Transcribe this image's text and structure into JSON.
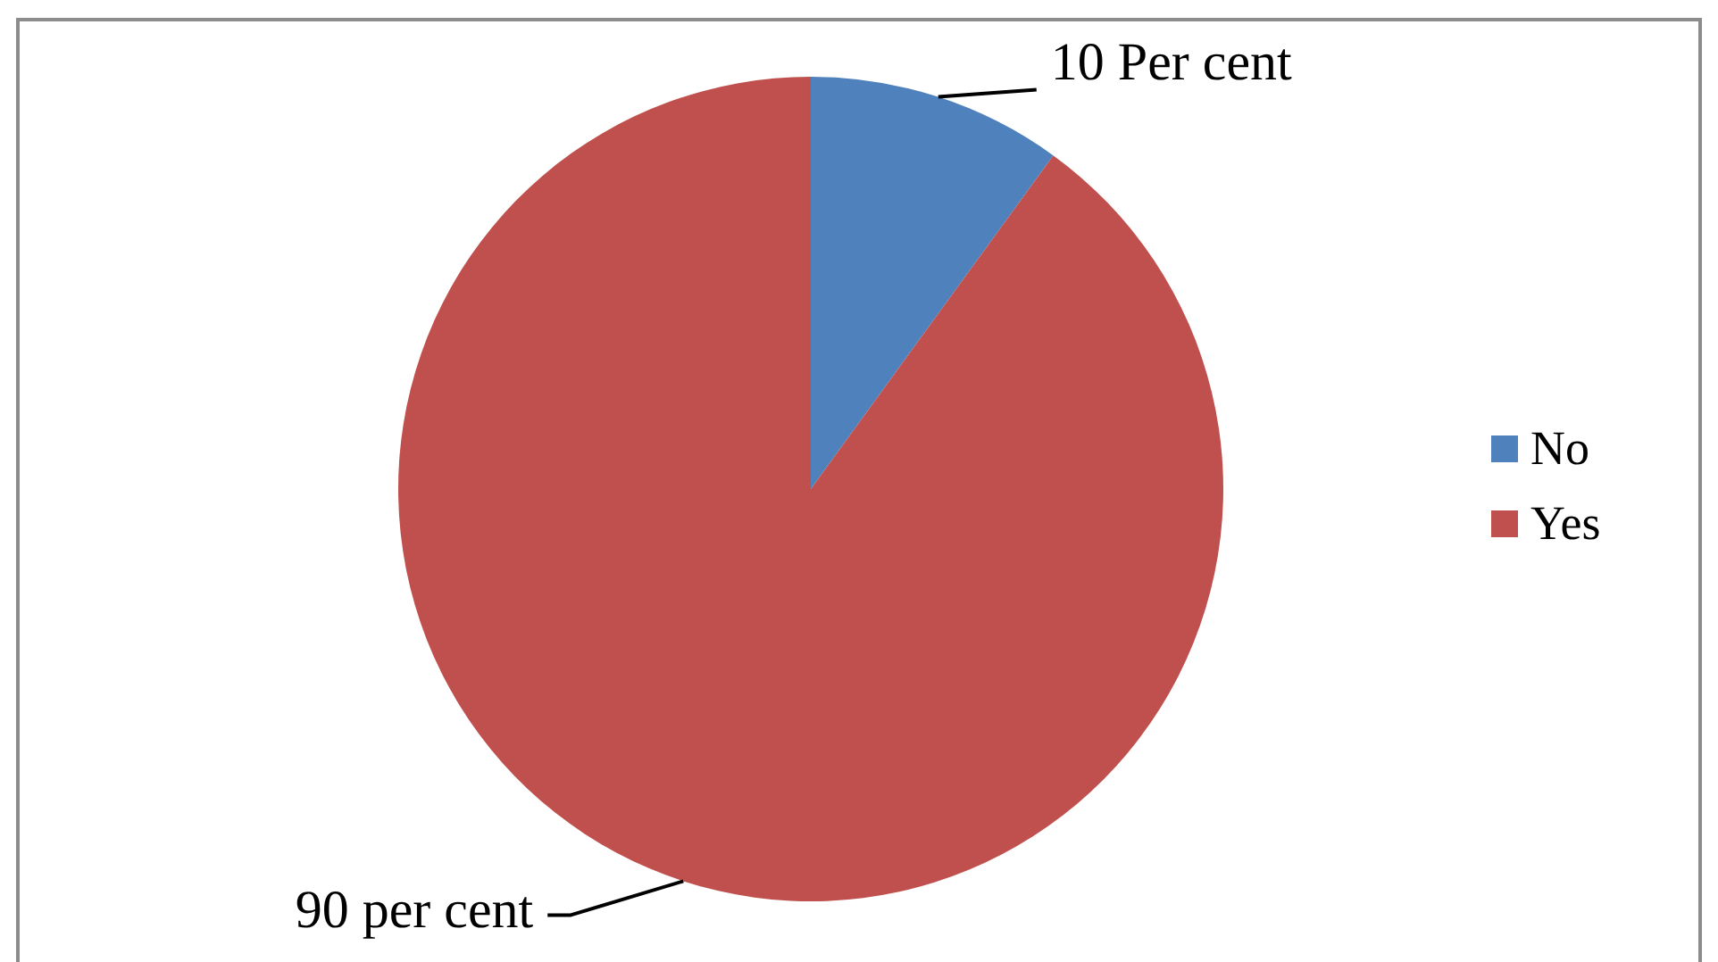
{
  "chart_data": {
    "type": "pie",
    "categories": [
      "No",
      "Yes"
    ],
    "values": [
      10,
      90
    ],
    "colors": [
      "#4f81bd",
      "#c0504d"
    ],
    "value_labels": [
      "10 Per cent",
      "90 per cent"
    ],
    "legend": "right"
  }
}
